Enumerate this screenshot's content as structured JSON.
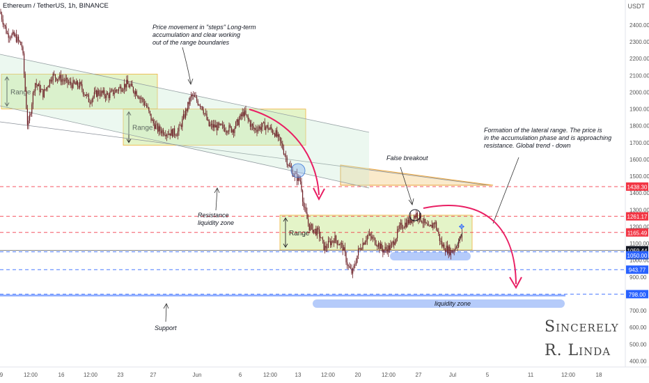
{
  "header": {
    "title": "Ethereum / TetherUS, 1h, BINANCE",
    "currency": "USDT"
  },
  "colors": {
    "up": "#26a69a",
    "down": "#ef5350",
    "candle": "#6b1d24",
    "accent": "#e91e63",
    "range_fill": "#d9f0b0",
    "range_border": "#f0b23c",
    "level_red": "#f23645",
    "level_blue": "#2962ff",
    "liquidity": "#5b8bf5"
  },
  "chart_data": {
    "type": "candlestick",
    "title": "Ethereum / TetherUS, 1h, BINANCE",
    "x_tick_labels": [
      "9",
      "12:00",
      "16",
      "12:00",
      "23",
      "27",
      "Jun",
      "6",
      "12:00",
      "13",
      "12:00",
      "20",
      "12:00",
      "27",
      "Jul",
      "5",
      "11",
      "12:00",
      "18"
    ],
    "y_ticks": [
      2400,
      2300,
      2200,
      2100,
      2000,
      1900,
      1800,
      1700,
      1600,
      1500,
      1400,
      1300,
      1200,
      1100,
      1000,
      900,
      800,
      700,
      600,
      500,
      400
    ],
    "y_tick_labels": [
      "2400.00",
      "2300.00",
      "2200.00",
      "2100.00",
      "2000.00",
      "1900.00",
      "1800.00",
      "1700.00",
      "1600.00",
      "1500.00",
      "1400.00",
      "1300.00",
      "1200.00",
      "1100.00",
      "1000.00",
      "900.00",
      "800.00",
      "700.00",
      "600.00",
      "500.00",
      "400.00"
    ],
    "ylim": [
      380,
      2500
    ],
    "price_path": [
      [
        0,
        2480
      ],
      [
        10,
        2350
      ],
      [
        22,
        2330
      ],
      [
        32,
        2270
      ],
      [
        40,
        1780
      ],
      [
        50,
        2060
      ],
      [
        62,
        1990
      ],
      [
        75,
        2100
      ],
      [
        88,
        2080
      ],
      [
        100,
        2050
      ],
      [
        115,
        2040
      ],
      [
        128,
        1950
      ],
      [
        140,
        2000
      ],
      [
        155,
        1980
      ],
      [
        170,
        2020
      ],
      [
        182,
        2050
      ],
      [
        196,
        2000
      ],
      [
        210,
        1920
      ],
      [
        218,
        1830
      ],
      [
        226,
        1780
      ],
      [
        240,
        1760
      ],
      [
        255,
        1760
      ],
      [
        262,
        1830
      ],
      [
        275,
        1980
      ],
      [
        290,
        1920
      ],
      [
        300,
        1800
      ],
      [
        318,
        1790
      ],
      [
        335,
        1780
      ],
      [
        350,
        1880
      ],
      [
        364,
        1780
      ],
      [
        380,
        1800
      ],
      [
        395,
        1760
      ],
      [
        405,
        1680
      ],
      [
        415,
        1560
      ],
      [
        422,
        1510
      ],
      [
        432,
        1470
      ],
      [
        436,
        1320
      ],
      [
        444,
        1200
      ],
      [
        458,
        1160
      ],
      [
        466,
        1070
      ],
      [
        480,
        1130
      ],
      [
        492,
        1080
      ],
      [
        500,
        960
      ],
      [
        506,
        920
      ],
      [
        515,
        1060
      ],
      [
        528,
        1150
      ],
      [
        540,
        1110
      ],
      [
        550,
        1060
      ],
      [
        562,
        1080
      ],
      [
        575,
        1200
      ],
      [
        590,
        1240
      ],
      [
        598,
        1275
      ],
      [
        606,
        1240
      ],
      [
        616,
        1180
      ],
      [
        624,
        1230
      ],
      [
        634,
        1090
      ],
      [
        644,
        1060
      ],
      [
        648,
        1050
      ],
      [
        656,
        1090
      ],
      [
        662,
        1140
      ]
    ],
    "levels": [
      {
        "label": "1438.30",
        "value": 1438.3,
        "color": "#f23645",
        "style": "dash"
      },
      {
        "label": "1261.17",
        "value": 1261.17,
        "color": "#f23645",
        "style": "dash"
      },
      {
        "label": "1165.49",
        "value": 1165.49,
        "color": "#f23645",
        "style": "dash"
      },
      {
        "label": "1059.44",
        "value": 1059.44,
        "color": "#131722",
        "style": "solid"
      },
      {
        "label": "1050.00",
        "value": 1050.0,
        "color": "#2962ff",
        "style": "dash"
      },
      {
        "label": "943.77",
        "value": 943.77,
        "color": "#2962ff",
        "style": "dash"
      },
      {
        "label": "798.00",
        "value": 798.0,
        "color": "#2962ff",
        "style": "dash"
      }
    ],
    "annotations": {
      "steps": [
        "Price movement in \"steps\" Long-term",
        "accumulation and clear working",
        "out of the range boundaries"
      ],
      "formation": [
        "Formation of the lateral range. The price is",
        "in the accumulation phase and is approaching",
        "resistance. Global trend - down"
      ],
      "false_breakout": "False breakout",
      "resistance": [
        "Resistance",
        "liquidity zone"
      ],
      "support": "Support",
      "liquidity_zone": "liquidity zone",
      "range": "Range"
    },
    "signature": [
      "Sincerely",
      "R. Linda"
    ]
  }
}
